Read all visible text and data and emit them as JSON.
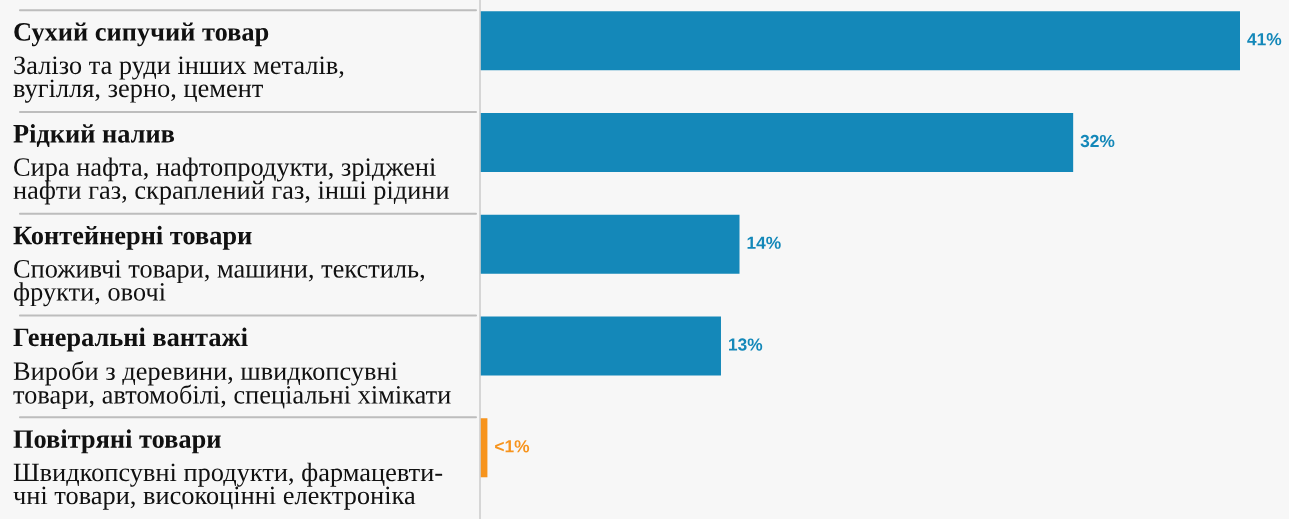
{
  "chart_data": {
    "type": "bar",
    "orientation": "horizontal",
    "categories": [
      "Сухий сипучий товар\nЗалізо та руди інших металів,\nвугілля, зерно, цемент",
      "Рідкий налив\nСира нафта, нафтопродукти, зріджені\nнафти газ, скраплений газ, інші рідини",
      "Контейнерні товари\nСпоживчі товари, машини, текстиль,\nфрукти, овочі",
      "Генеральні вантажі\nВироби з деревини, швидкопсувні\nтовари, автомобілі, спеціальні хімікати",
      "Повітряні товари\nШвидкопсувні продукти, фармацевти-\nчні товари, високоцінні електроніка"
    ],
    "values": [
      41,
      32,
      14,
      13,
      0.4
    ],
    "colors": [
      "#1488b9",
      "#1488b9",
      "#1488b9",
      "#1488b9",
      "#f7941d"
    ],
    "value_labels": [
      "41%",
      "32%",
      "14%",
      "13%",
      "<1%"
    ]
  }
}
